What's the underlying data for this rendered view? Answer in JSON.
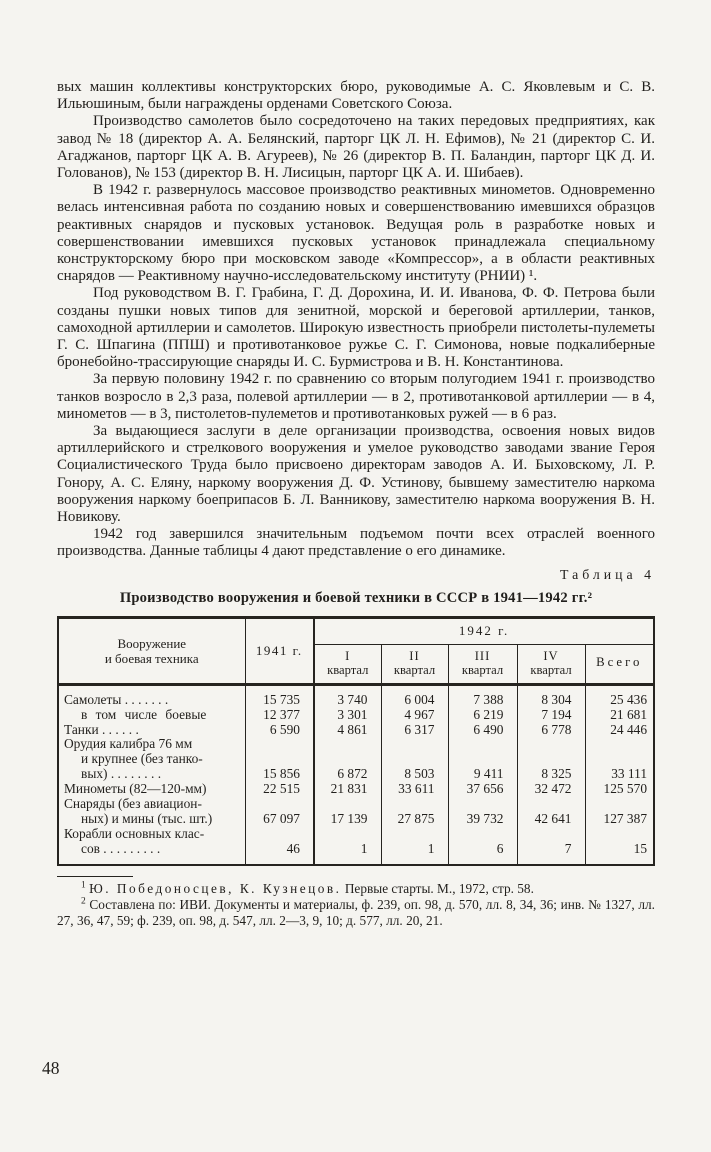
{
  "page": {
    "number": "48"
  },
  "paragraphs": [
    {
      "indent": false,
      "text": "вых машин коллективы конструкторских бюро, руководимые А. С. Яковлевым и С. В. Ильюшиным, были награждены орденами Советского Союза."
    },
    {
      "indent": true,
      "text": "Производство самолетов было сосредоточено на таких передовых предприятиях, как завод № 18 (директор А. А. Белянский, парторг ЦК Л. Н. Ефимов), № 21 (директор С. И. Агаджанов, парторг ЦК А. В. Агуреев), № 26 (директор В. П. Баландин, парторг ЦК Д. И. Голованов), № 153 (директор В. Н. Лисицын, парторг ЦК А. И. Шибаев)."
    },
    {
      "indent": true,
      "text": "В 1942 г. развернулось массовое производство реактивных минометов. Одновременно велась интенсивная работа по созданию новых и совершенствованию имевшихся образцов реактивных снарядов и пусковых установок. Ведущая роль в разработке новых и совершенствовании имевшихся пусковых установок принадлежала специальному конструкторскому бюро при московском заводе «Компрессор», а в области реактивных снарядов — Реактивному научно-исследовательскому институту (РНИИ) ¹."
    },
    {
      "indent": true,
      "text": "Под руководством В. Г. Грабина, Г. Д. Дорохина, И. И. Иванова, Ф. Ф. Петрова были созданы пушки новых типов для зенитной, морской и береговой артиллерии, танков, самоходной артиллерии и самолетов. Широкую известность приобрели пистолеты-пулеметы Г. С. Шпагина (ППШ) и противотанковое ружье С. Г. Симонова, новые подкалиберные бронебойно-трассирующие снаряды И. С. Бурмистрова и В. Н. Константинова."
    },
    {
      "indent": true,
      "text": "За первую половину 1942 г. по сравнению со вторым полугодием 1941 г. производство танков возросло в 2,3 раза, полевой артиллерии — в 2, противотанковой артиллерии — в 4, минометов — в 3, пистолетов-пулеметов и противотанковых ружей — в 6 раз."
    },
    {
      "indent": true,
      "text": "За выдающиеся заслуги в деле организации производства, освоения новых видов артиллерийского и стрелкового вооружения и умелое руководство заводами звание Героя Социалистического Труда было присвоено директорам заводов А. И. Быховскому, Л. Р. Гонору, А. С. Еляну, наркому вооружения Д. Ф. Устинову, бывшему заместителю наркома вооружения наркому боеприпасов Б. Л. Ванникову, заместителю наркома вооружения В. Н. Новикову."
    },
    {
      "indent": true,
      "text": "1942 год завершился значительным подъемом почти всех отраслей военного производства. Данные таблицы 4 дают представление о его динамике."
    }
  ],
  "table_block": {
    "label": "Таблица 4",
    "title": "Производство вооружения и боевой техники в СССР в 1941—1942 гг.²",
    "header": {
      "equipment_line1": "Вооружение",
      "equipment_line2": "и боевая техника",
      "col_1941": "1941 г.",
      "group_1942": "1942 г.",
      "quarters": [
        {
          "num": "I",
          "word": "квартал"
        },
        {
          "num": "II",
          "word": "квартал"
        },
        {
          "num": "III",
          "word": "квартал"
        },
        {
          "num": "IV",
          "word": "квартал"
        }
      ],
      "col_total": "Всего"
    },
    "rows": [
      {
        "label_lines": [
          "Самолеты . . . . . . ."
        ],
        "indent": false,
        "values": [
          "15 735",
          "3 740",
          "6 004",
          "7 388",
          "8 304",
          "25 436"
        ]
      },
      {
        "label_lines": [
          "в том числе боевые"
        ],
        "indent": true,
        "values": [
          "12 377",
          "3 301",
          "4 967",
          "6 219",
          "7 194",
          "21 681"
        ]
      },
      {
        "label_lines": [
          "Танки . . . . . ."
        ],
        "indent": false,
        "values": [
          "6 590",
          "4 861",
          "6 317",
          "6 490",
          "6 778",
          "24 446"
        ]
      },
      {
        "label_lines": [
          "Орудия калибра 76 мм",
          "и крупнее (без танко-",
          "вых) . . . . . . . ."
        ],
        "indent": false,
        "values": [
          "15 856",
          "6 872",
          "8 503",
          "9 411",
          "8 325",
          "33 111"
        ]
      },
      {
        "label_lines": [
          "Минометы (82—120-мм)"
        ],
        "indent": false,
        "values": [
          "22 515",
          "21 831",
          "33 611",
          "37 656",
          "32 472",
          "125 570"
        ]
      },
      {
        "label_lines": [
          "Снаряды (без авиацион-",
          "ных) и мины (тыс. шт.)"
        ],
        "indent": false,
        "values": [
          "67 097",
          "17 139",
          "27 875",
          "39 732",
          "42 641",
          "127 387"
        ]
      },
      {
        "label_lines": [
          "Корабли основных клас-",
          "сов . . . . . . . . ."
        ],
        "indent": false,
        "values": [
          "46",
          "1",
          "1",
          "6",
          "7",
          "15"
        ]
      }
    ]
  },
  "footnotes": [
    {
      "marker": "1",
      "authors": "Ю. Победоносцев, К. Кузнецов.",
      "text": "Первые старты. М., 1972, стр. 58."
    },
    {
      "marker": "2",
      "authors": "",
      "text": "Составлена по: ИВИ. Документы и материалы, ф. 239, оп. 98, д. 570, лл. 8, 34, 36; инв. № 1327, лл. 27, 36, 47, 59; ф. 239, оп. 98, д. 547, лл. 2—3, 9, 10; д. 577, лл. 20, 21."
    }
  ]
}
